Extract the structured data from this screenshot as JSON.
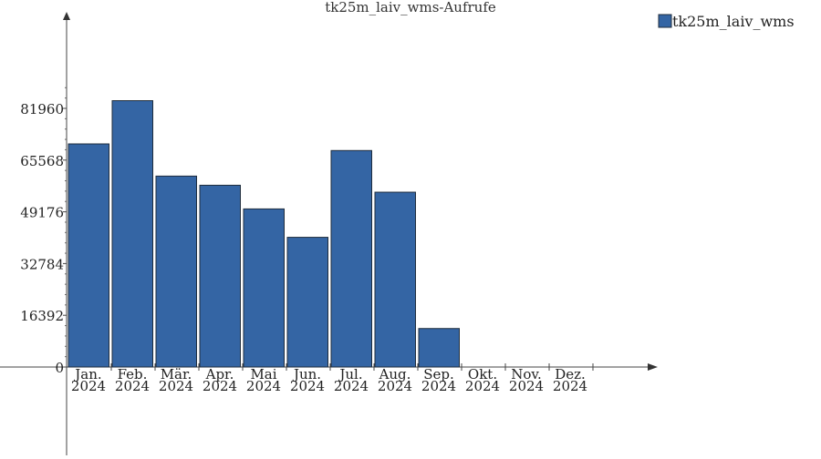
{
  "chart_data": {
    "type": "bar",
    "title": "tk25m_laiv_wms-Aufrufe",
    "xlabel": "",
    "ylabel": "",
    "categories": [
      [
        "Jan.",
        "2024"
      ],
      [
        "Feb.",
        "2024"
      ],
      [
        "Mär.",
        "2024"
      ],
      [
        "Apr.",
        "2024"
      ],
      [
        "Mai",
        "2024"
      ],
      [
        "Jun.",
        "2024"
      ],
      [
        "Jul.",
        "2024"
      ],
      [
        "Aug.",
        "2024"
      ],
      [
        "Sep.",
        "2024"
      ],
      [
        "Okt.",
        "2024"
      ],
      [
        "Nov.",
        "2024"
      ],
      [
        "Dez.",
        "2024"
      ]
    ],
    "series": [
      {
        "name": "tk25m_laiv_wms",
        "color": "#3465a4",
        "values": [
          70700,
          84400,
          60500,
          57600,
          50100,
          41100,
          68600,
          55400,
          12200,
          0,
          0,
          0
        ]
      }
    ],
    "yticks": [
      "81960",
      "65568",
      "49176",
      "32784",
      "16392",
      "0"
    ],
    "ylim": [
      0,
      81960
    ],
    "legend": "top-right",
    "grid": false
  }
}
